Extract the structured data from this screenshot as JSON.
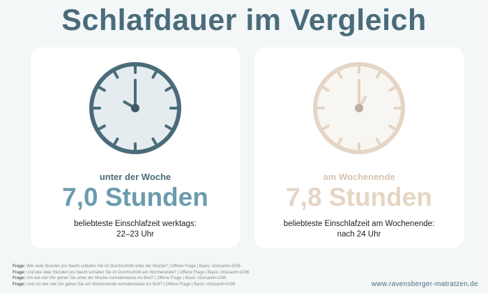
{
  "title": "Schlafdauer im Vergleich",
  "cards": [
    {
      "label": "unter der Woche",
      "value": "7,0 Stunden",
      "desc_line1": "beliebteste Einschlafzeit werktags:",
      "desc_line2": "22–23 Uhr",
      "clock_time": "10:00",
      "colors": {
        "accent": "#4a6b7a",
        "value": "#6b9bae",
        "face": "#e4ecef"
      }
    },
    {
      "label": "am Wochenende",
      "value": "7,8 Stunden",
      "desc_line1": "beliebteste Einschlafzeit am Wochenende:",
      "desc_line2": "nach 24 Uhr",
      "clock_time": "01:00",
      "colors": {
        "accent": "#e5d5c4",
        "value": "#e5d5c4",
        "face": "#f8f6f3"
      }
    }
  ],
  "footnotes": [
    {
      "prefix": "Frage:",
      "text": " Wie viele Stunden pro Nacht schlafen Sie im Durchschnitt unter der Woche? | Offene Frage | Basis: nGesamt=1036"
    },
    {
      "prefix": "Frage:",
      "text": " Und wie viele Stunden pro Nacht schlafen Sie im Durchschnitt am Wochenende? | Offene Frage | Basis: nGesamt=1036"
    },
    {
      "prefix": "Frage:",
      "text": " Um wie viel Uhr gehen Sie unter der Woche normalerweise ins Bett? | Offene Frage | Basis: nGesamt=1036"
    },
    {
      "prefix": "Frage:",
      "text": " Und um wie viel Uhr gehen Sie am Wochenende normalerweise ins Bett? | Offene Frage | Basis: nGesamt=1036"
    }
  ],
  "url": "www.ravensberger-matratzen.de"
}
